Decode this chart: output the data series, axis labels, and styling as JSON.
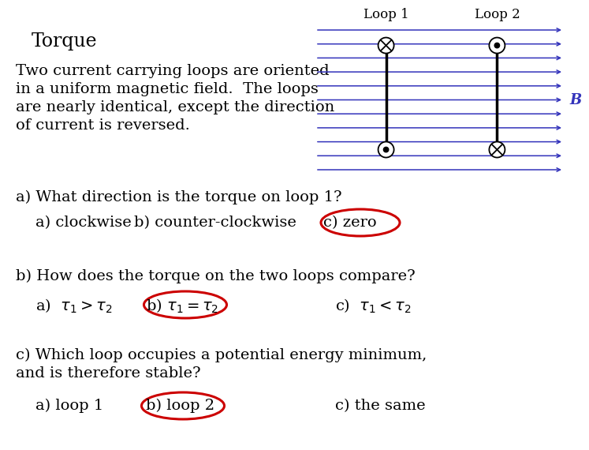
{
  "title": "Torque",
  "description_line1": "Two current carrying loops are oriented",
  "description_line2": "in a uniform magnetic field.  The loops",
  "description_line3": "are nearly identical, except the direction",
  "description_line4": "of current is reversed.",
  "question_a": "a) What direction is the torque on loop 1?",
  "ans_a1": "a) clockwise",
  "ans_a2": "b) counter-clockwise",
  "ans_a3": "c) zero",
  "question_b": "b) How does the torque on the two loops compare?",
  "ans_b1_text": "a)",
  "ans_b2_text": "b)",
  "ans_b3_text": "c)",
  "question_c1": "c) Which loop occupies a potential energy minimum,",
  "question_c2": "and is therefore stable?",
  "ans_c1": "a) loop 1",
  "ans_c2": "b) loop 2",
  "ans_c3": "c) the same",
  "loop1_label": "Loop 1",
  "loop2_label": "Loop 2",
  "B_label": "B",
  "bg_color": "#ffffff",
  "text_color": "#000000",
  "loop_color": "#000000",
  "field_color": "#3333bb",
  "circle_color": "#cc0000",
  "num_field_lines": 11
}
